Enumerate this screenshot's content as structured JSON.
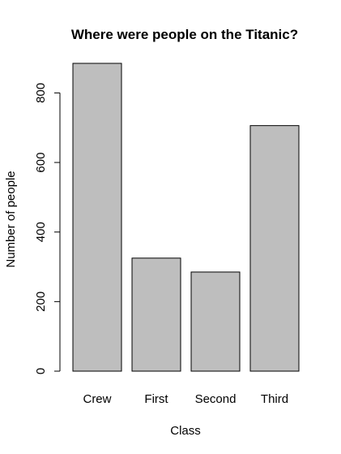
{
  "chart_data": {
    "type": "bar",
    "title": "Where were people on the Titanic?",
    "xlabel": "Class",
    "ylabel": "Number of people",
    "categories": [
      "Crew",
      "First",
      "Second",
      "Third"
    ],
    "values": [
      885,
      325,
      285,
      706
    ],
    "ylim": [
      0,
      885
    ],
    "yticks": [
      0,
      200,
      400,
      600,
      800
    ],
    "grid": false,
    "bar_color": "#bebebe",
    "bar_border_color": "#000000"
  }
}
